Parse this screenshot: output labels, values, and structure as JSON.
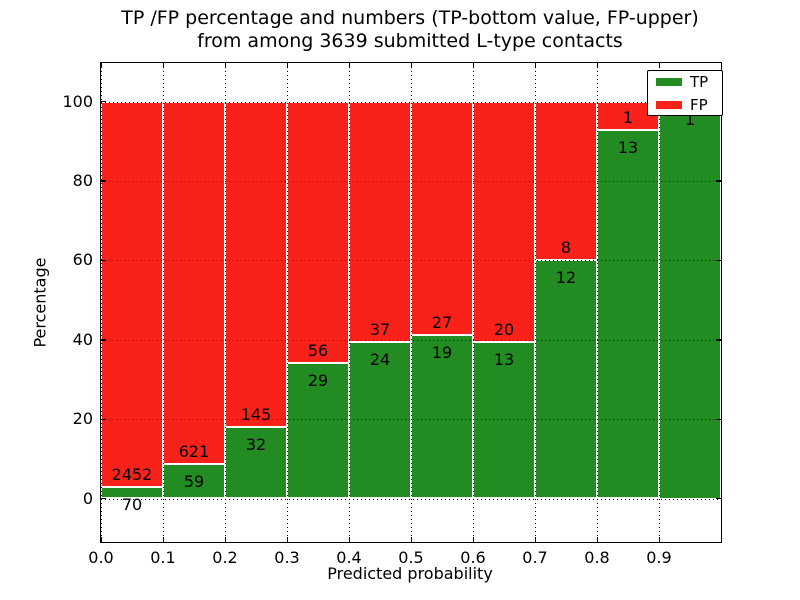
{
  "title": {
    "line1": "TP /FP percentage and numbers (TP-bottom value, FP-upper)",
    "line2": "from among 3639 submitted L-type contacts"
  },
  "axes": {
    "ylabel": "Percentage",
    "xlabel": "Predicted probability",
    "y_ticks": [
      "0",
      "20",
      "40",
      "60",
      "80",
      "100"
    ],
    "y_tick_values": [
      0,
      20,
      40,
      60,
      80,
      100
    ],
    "x_ticks": [
      "0.0",
      "0.1",
      "0.2",
      "0.3",
      "0.4",
      "0.5",
      "0.6",
      "0.7",
      "0.8",
      "0.9"
    ],
    "x_tick_values": [
      0.0,
      0.1,
      0.2,
      0.3,
      0.4,
      0.5,
      0.6,
      0.7,
      0.8,
      0.9
    ]
  },
  "legend": {
    "items": [
      {
        "label": "TP",
        "color": "#228B22"
      },
      {
        "label": "FP",
        "color": "#F8221B"
      }
    ]
  },
  "chart_data": {
    "type": "bar",
    "stacked": true,
    "normalized_to": 100,
    "title": "TP /FP percentage and numbers (TP-bottom value, FP-upper) from among 3639 submitted L-type contacts",
    "xlabel": "Predicted probability",
    "ylabel": "Percentage",
    "xlim": [
      0.0,
      1.0
    ],
    "ylim": [
      -11,
      110
    ],
    "grid": "dotted, drawn over bars",
    "legend_position": "upper right",
    "total_contacts": 3639,
    "bin_edges": [
      0.0,
      0.1,
      0.2,
      0.3,
      0.4,
      0.5,
      0.6,
      0.7,
      0.8,
      0.9,
      1.0
    ],
    "categories": [
      "0.0-0.1",
      "0.1-0.2",
      "0.2-0.3",
      "0.3-0.4",
      "0.4-0.5",
      "0.5-0.6",
      "0.6-0.7",
      "0.7-0.8",
      "0.8-0.9",
      "0.9-1.0"
    ],
    "series": [
      {
        "name": "TP",
        "color": "#228B22",
        "values": [
          70,
          59,
          32,
          29,
          24,
          19,
          13,
          12,
          13,
          1
        ]
      },
      {
        "name": "FP",
        "color": "#F8221B",
        "values": [
          2452,
          621,
          145,
          56,
          37,
          27,
          20,
          8,
          1,
          0
        ]
      }
    ],
    "tp_percent": [
      2.78,
      8.68,
      18.08,
      34.12,
      39.34,
      41.3,
      39.39,
      60.0,
      92.86,
      100.0
    ]
  }
}
